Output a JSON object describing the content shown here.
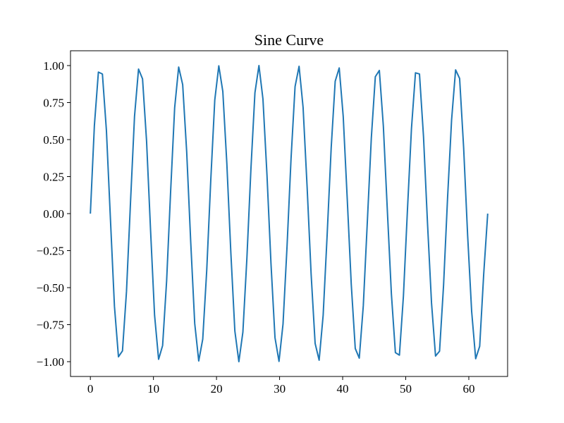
{
  "chart_data": {
    "type": "line",
    "title": "Sine Curve",
    "xlabel": "",
    "ylabel": "",
    "xlim": [
      -3.15,
      66.15
    ],
    "ylim": [
      -1.1,
      1.1
    ],
    "x_ticks": [
      0,
      10,
      20,
      30,
      40,
      50,
      60
    ],
    "x_tick_labels": [
      "0",
      "10",
      "20",
      "30",
      "40",
      "50",
      "60"
    ],
    "y_ticks": [
      1.0,
      0.75,
      0.5,
      0.25,
      0.0,
      -0.25,
      -0.5,
      -0.75,
      -1.0
    ],
    "y_tick_labels": [
      "1.00",
      "0.75",
      "0.50",
      "0.25",
      "0.00",
      "−0.25",
      "−0.50",
      "−0.75",
      "−1.00"
    ],
    "grid": false,
    "legend": "none",
    "series": [
      {
        "color": "#1f77b4",
        "x": [
          0.0,
          0.636,
          1.273,
          1.909,
          2.545,
          3.182,
          3.818,
          4.454,
          5.091,
          5.727,
          6.363,
          7.0,
          7.636,
          8.272,
          8.909,
          9.545,
          10.181,
          10.818,
          11.454,
          12.09,
          12.727,
          13.363,
          13.999,
          14.636,
          15.272,
          15.908,
          16.545,
          17.181,
          17.817,
          18.454,
          19.09,
          19.726,
          20.363,
          20.999,
          21.635,
          22.272,
          22.908,
          23.544,
          24.181,
          24.817,
          25.453,
          26.09,
          26.726,
          27.362,
          27.999,
          28.635,
          29.271,
          29.908,
          30.544,
          31.18,
          31.817,
          32.453,
          33.089,
          33.726,
          34.362,
          34.998,
          35.635,
          36.271,
          36.907,
          37.544,
          38.18,
          38.816,
          39.453,
          40.089,
          40.725,
          41.362,
          41.998,
          42.634,
          43.271,
          43.907,
          44.543,
          45.18,
          45.816,
          46.452,
          47.089,
          47.725,
          48.361,
          48.998,
          49.634,
          50.27,
          50.907,
          51.543,
          52.179,
          52.816,
          53.452,
          54.088,
          54.725,
          55.361,
          55.997,
          56.634,
          57.27,
          57.906,
          58.543,
          59.179,
          59.815,
          60.452,
          61.088,
          61.724,
          62.361,
          62.997
        ],
        "y": [
          0.0,
          0.594,
          0.956,
          0.943,
          0.561,
          -0.038,
          -0.626,
          -0.967,
          -0.927,
          -0.526,
          0.076,
          0.657,
          0.976,
          0.91,
          0.491,
          -0.114,
          -0.687,
          -0.984,
          -0.891,
          -0.454,
          0.152,
          0.715,
          0.99,
          0.871,
          0.417,
          -0.189,
          -0.742,
          -0.995,
          -0.848,
          -0.379,
          0.227,
          0.768,
          0.998,
          0.825,
          0.34,
          -0.264,
          -0.793,
          -1.0,
          -0.8,
          -0.301,
          0.3,
          0.816,
          1.0,
          0.774,
          0.262,
          -0.337,
          -0.838,
          -0.998,
          -0.746,
          -0.222,
          0.373,
          0.858,
          0.995,
          0.717,
          0.181,
          -0.408,
          -0.877,
          -0.99,
          -0.687,
          -0.141,
          0.443,
          0.894,
          0.984,
          0.656,
          0.1,
          -0.477,
          -0.911,
          -0.976,
          -0.623,
          -0.059,
          0.51,
          0.925,
          0.967,
          0.59,
          0.017,
          -0.542,
          -0.939,
          -0.956,
          -0.556,
          0.024,
          0.574,
          0.951,
          0.943,
          0.521,
          -0.066,
          -0.604,
          -0.962,
          -0.929,
          -0.484,
          0.107,
          0.633,
          0.971,
          0.913,
          0.447,
          -0.148,
          -0.661,
          -0.98,
          -0.896,
          -0.409,
          0.0
        ]
      }
    ]
  }
}
